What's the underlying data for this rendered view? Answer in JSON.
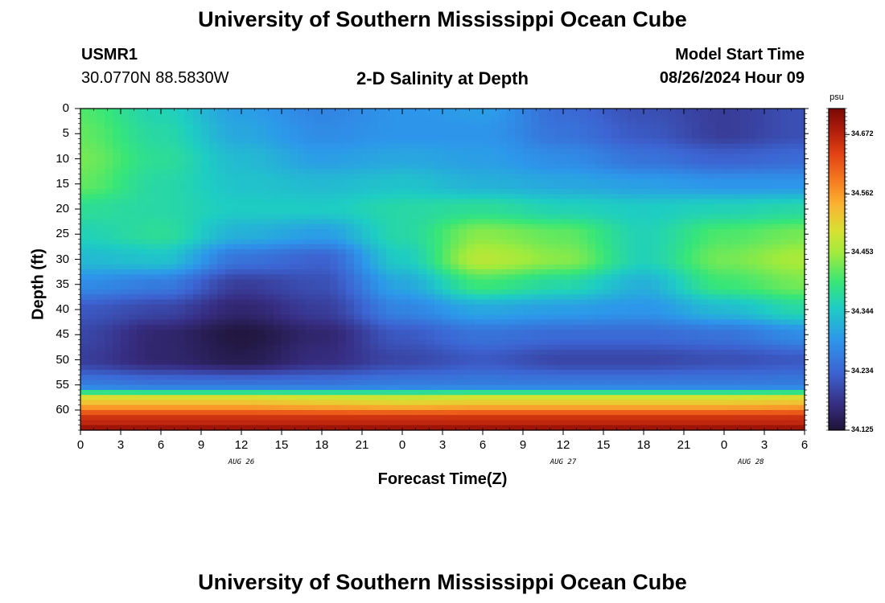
{
  "header": {
    "title_top": "University of Southern Mississippi Ocean Cube",
    "title_bottom": "University of Southern Mississippi Ocean Cube",
    "station_id": "USMR1",
    "station_coords": "30.0770N  88.5830W",
    "plot_title": "2-D Salinity at Depth",
    "model_label": "Model Start Time",
    "model_time": "08/26/2024 Hour 09"
  },
  "chart_data": {
    "type": "heatmap",
    "title": "2-D Salinity at Depth",
    "xlabel": "Forecast Time(Z)",
    "ylabel": "Depth (ft)",
    "x_tick_labels": [
      "0",
      "3",
      "6",
      "9",
      "12",
      "15",
      "18",
      "21",
      "0",
      "3",
      "6",
      "9",
      "12",
      "15",
      "18",
      "21",
      "0",
      "3",
      "6"
    ],
    "date_labels": [
      "AUG 26",
      "AUG 27",
      "AUG 28"
    ],
    "y_tick_labels": [
      "0",
      "5",
      "10",
      "15",
      "20",
      "25",
      "30",
      "35",
      "40",
      "45",
      "50",
      "55",
      "60"
    ],
    "xlim_hours": [
      0,
      54
    ],
    "ylim_ft": [
      0,
      64
    ],
    "colorbar": {
      "unit": "psu",
      "range": [
        34.125,
        34.72
      ],
      "tick_labels": [
        "34.672",
        "34.562",
        "34.453",
        "34.344",
        "34.234",
        "34.125"
      ],
      "tick_values": [
        34.672,
        34.562,
        34.453,
        34.344,
        34.234,
        34.125
      ]
    },
    "x_hours": [
      0,
      6,
      12,
      18,
      24,
      30,
      36,
      42,
      48,
      54
    ],
    "depth_ft": [
      0,
      5,
      10,
      15,
      20,
      25,
      30,
      35,
      40,
      45,
      50,
      55,
      58,
      62,
      64
    ],
    "salinity_psu": [
      [
        34.41,
        34.36,
        34.3,
        34.27,
        34.29,
        34.3,
        34.24,
        34.21,
        34.19,
        34.21
      ],
      [
        34.42,
        34.37,
        34.31,
        34.28,
        34.29,
        34.29,
        34.25,
        34.22,
        34.19,
        34.21
      ],
      [
        34.43,
        34.38,
        34.33,
        34.3,
        34.31,
        34.3,
        34.28,
        34.25,
        34.23,
        34.24
      ],
      [
        34.42,
        34.37,
        34.34,
        34.33,
        34.34,
        34.32,
        34.31,
        34.3,
        34.29,
        34.29
      ],
      [
        34.38,
        34.37,
        34.35,
        34.35,
        34.37,
        34.38,
        34.36,
        34.35,
        34.36,
        34.37
      ],
      [
        34.36,
        34.38,
        34.32,
        34.3,
        34.37,
        34.44,
        34.42,
        34.36,
        34.41,
        34.43
      ],
      [
        34.33,
        34.34,
        34.25,
        34.23,
        34.35,
        34.47,
        34.44,
        34.36,
        34.43,
        34.46
      ],
      [
        34.28,
        34.26,
        34.19,
        34.21,
        34.31,
        34.4,
        34.37,
        34.32,
        34.4,
        34.43
      ],
      [
        34.22,
        34.2,
        34.16,
        34.19,
        34.27,
        34.31,
        34.3,
        34.29,
        34.33,
        34.37
      ],
      [
        34.2,
        34.16,
        34.13,
        34.16,
        34.22,
        34.25,
        34.24,
        34.24,
        34.25,
        34.28
      ],
      [
        34.19,
        34.16,
        34.14,
        34.17,
        34.2,
        34.22,
        34.2,
        34.2,
        34.21,
        34.22
      ],
      [
        34.26,
        34.25,
        34.25,
        34.25,
        34.26,
        34.26,
        34.26,
        34.26,
        34.26,
        34.26
      ],
      [
        34.52,
        34.52,
        34.52,
        34.51,
        34.5,
        34.51,
        34.51,
        34.51,
        34.51,
        34.52
      ],
      [
        34.66,
        34.66,
        34.66,
        34.66,
        34.66,
        34.66,
        34.66,
        34.66,
        34.66,
        34.66
      ],
      [
        34.7,
        34.7,
        34.7,
        34.7,
        34.7,
        34.7,
        34.7,
        34.7,
        34.7,
        34.7
      ]
    ]
  }
}
